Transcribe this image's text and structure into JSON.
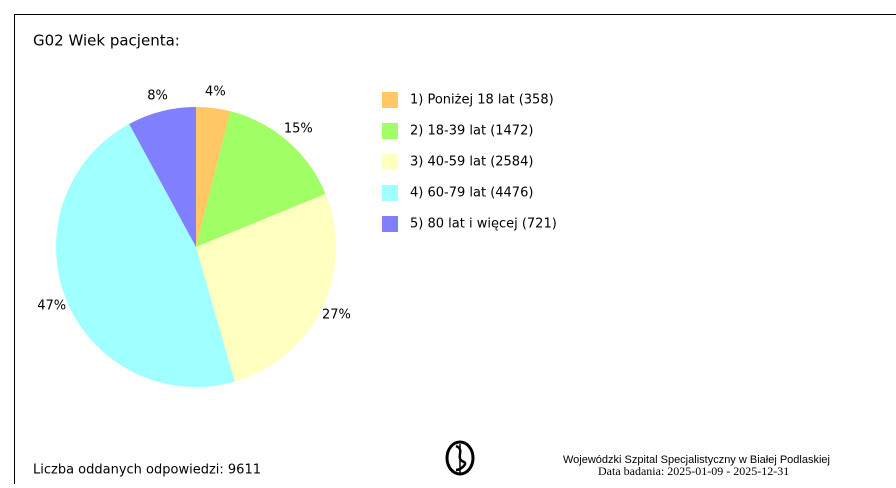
{
  "chart_data": {
    "type": "pie",
    "title": "G02 Wiek pacjenta:",
    "categories": [
      "1) Poniżej 18 lat (358)",
      "2) 18-39 lat (1472)",
      "3) 40-59 lat (2584)",
      "4) 60-79 lat (4476)",
      "5) 80 lat i więcej (721)"
    ],
    "values": [
      4,
      15,
      27,
      47,
      8
    ],
    "value_labels": [
      "4%",
      "15%",
      "27%",
      "47%",
      "8%"
    ],
    "colors": [
      "#ffc864",
      "#a0ff64",
      "#ffffc0",
      "#a0ffff",
      "#8080ff"
    ],
    "legend": "right"
  },
  "footer": {
    "responses": "Liczba oddanych odpowiedzi: 9611",
    "institution": "Wojewódzki Szpital Specjalistyczny w Białej Podlaskiej",
    "date": "Data badania: 2025-01-09 - 2025-12-31"
  }
}
